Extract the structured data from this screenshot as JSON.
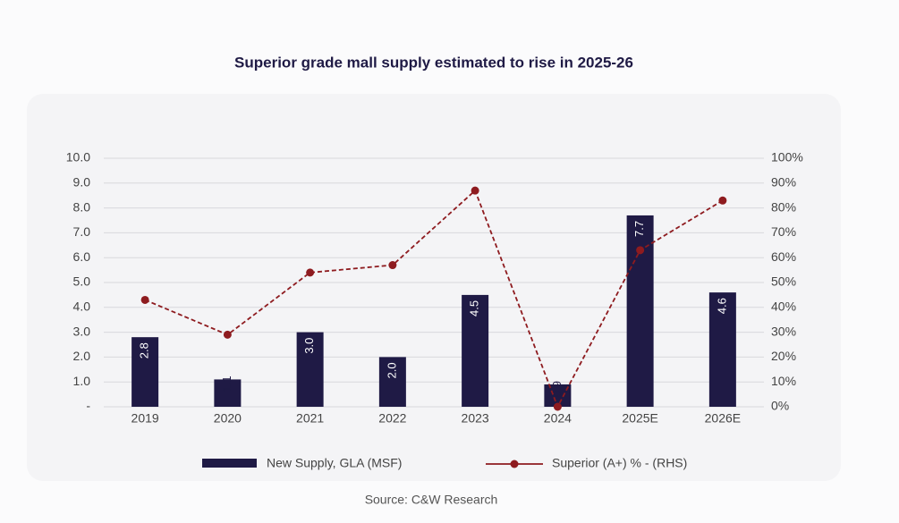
{
  "chart_data": {
    "type": "bar_line",
    "title": "Superior grade mall supply estimated to rise in 2025-26",
    "source": "Source: C&W Research",
    "categories": [
      "2019",
      "2020",
      "2021",
      "2022",
      "2023",
      "2024",
      "2025E",
      "2026E"
    ],
    "series": [
      {
        "name": "New Supply, GLA (MSF)",
        "type": "bar",
        "color": "#1f1a45",
        "values": [
          2.8,
          1.1,
          3.0,
          2.0,
          4.5,
          0.9,
          7.7,
          4.6
        ],
        "value_labels": [
          "2.8",
          "1.1",
          "3.0",
          "2.0",
          "4.5",
          "0.9",
          "7.7",
          "4.6"
        ]
      },
      {
        "name": "Superior (A+) % - (RHS)",
        "type": "line",
        "axis": "y2",
        "color": "#8e1b1f",
        "values": [
          43,
          29,
          54,
          57,
          87,
          0,
          63,
          83
        ]
      }
    ],
    "ylim": [
      0,
      10
    ],
    "yticks": [
      {
        "value": 0,
        "label": "-"
      },
      {
        "value": 1,
        "label": "1.0"
      },
      {
        "value": 2,
        "label": "2.0"
      },
      {
        "value": 3,
        "label": "3.0"
      },
      {
        "value": 4,
        "label": "4.0"
      },
      {
        "value": 5,
        "label": "5.0"
      },
      {
        "value": 6,
        "label": "6.0"
      },
      {
        "value": 7,
        "label": "7.0"
      },
      {
        "value": 8,
        "label": "8.0"
      },
      {
        "value": 9,
        "label": "9.0"
      },
      {
        "value": 10,
        "label": "10.0"
      }
    ],
    "y2lim": [
      0,
      100
    ],
    "y2ticks": [
      {
        "value": 0,
        "label": "0%"
      },
      {
        "value": 10,
        "label": "10%"
      },
      {
        "value": 20,
        "label": "20%"
      },
      {
        "value": 30,
        "label": "30%"
      },
      {
        "value": 40,
        "label": "40%"
      },
      {
        "value": 50,
        "label": "50%"
      },
      {
        "value": 60,
        "label": "60%"
      },
      {
        "value": 70,
        "label": "70%"
      },
      {
        "value": 80,
        "label": "80%"
      },
      {
        "value": 90,
        "label": "90%"
      },
      {
        "value": 100,
        "label": "100%"
      }
    ],
    "grid": true
  }
}
